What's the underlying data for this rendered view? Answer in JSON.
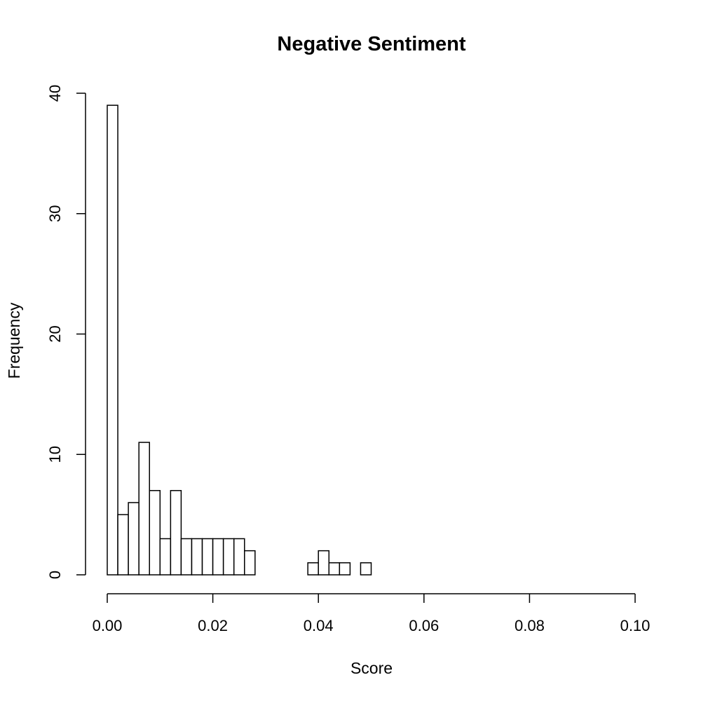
{
  "chart_data": {
    "type": "bar",
    "title": "Negative Sentiment",
    "xlabel": "Score",
    "ylabel": "Frequency",
    "xlim": [
      0,
      0.1
    ],
    "ylim": [
      0,
      40
    ],
    "grid": false,
    "bin_width": 0.002,
    "bin_edges": [
      0.0,
      0.002,
      0.004,
      0.006,
      0.008,
      0.01,
      0.012,
      0.014,
      0.016,
      0.018,
      0.02,
      0.022,
      0.024,
      0.026,
      0.028,
      0.03,
      0.032,
      0.034,
      0.036,
      0.038,
      0.04,
      0.042,
      0.044,
      0.046,
      0.048,
      0.05
    ],
    "values": [
      39,
      5,
      6,
      11,
      7,
      3,
      7,
      3,
      3,
      3,
      3,
      3,
      3,
      2,
      0,
      0,
      0,
      0,
      0,
      1,
      2,
      1,
      1,
      0,
      1
    ],
    "x_ticks": [
      "0.00",
      "0.02",
      "0.04",
      "0.06",
      "0.08",
      "0.10"
    ],
    "x_tick_values": [
      0,
      0.02,
      0.04,
      0.06,
      0.08,
      0.1
    ],
    "y_ticks": [
      "0",
      "10",
      "20",
      "30",
      "40"
    ],
    "y_tick_values": [
      0,
      10,
      20,
      30,
      40
    ]
  }
}
